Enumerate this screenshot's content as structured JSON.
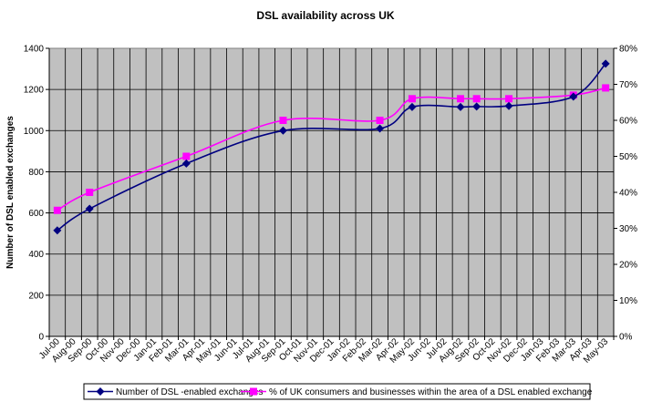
{
  "chart_data": {
    "type": "line",
    "title": "DSL availability across UK",
    "ylabel": "Number of DSL enabled exchanges",
    "y2label": "",
    "categories": [
      "Jul-00",
      "Aug-00",
      "Sep-00",
      "Oct-00",
      "Nov-00",
      "Dec-00",
      "Jan-01",
      "Feb-01",
      "Mar-01",
      "Apr-01",
      "May-01",
      "Jun-01",
      "Jul-01",
      "Aug-01",
      "Sep-01",
      "Oct-01",
      "Nov-01",
      "Dec-01",
      "Jan-02",
      "Feb-02",
      "Mar-02",
      "Apr-02",
      "May-02",
      "Jun-02",
      "Jul-02",
      "Aug-02",
      "Sep-02",
      "Oct-02",
      "Nov-02",
      "Dec-02",
      "Jan-03",
      "Feb-03",
      "Mar-03",
      "Apr-03",
      "May-03"
    ],
    "ylim": [
      0,
      1400
    ],
    "yticks": [
      "0",
      "200",
      "400",
      "600",
      "800",
      "1000",
      "1200",
      "1400"
    ],
    "y2lim": [
      0,
      80
    ],
    "y2ticks": [
      "0%",
      "10%",
      "20%",
      "30%",
      "40%",
      "50%",
      "60%",
      "70%",
      "80%"
    ],
    "grid": true,
    "legend_position": "bottom",
    "series": [
      {
        "name": "Number of DSL -enabled exchanges",
        "axis": "left",
        "color": "#000080",
        "marker": "diamond",
        "x": [
          0,
          2,
          8,
          14,
          20,
          22,
          25,
          26,
          28,
          32,
          34
        ],
        "values": [
          515,
          620,
          840,
          1000,
          1010,
          1115,
          1115,
          1117,
          1120,
          1165,
          1325
        ]
      },
      {
        "name": "% of UK consumers and businesses within the area of a DSL enabled exchange",
        "axis": "right",
        "color": "#FF00FF",
        "marker": "square",
        "x": [
          0,
          2,
          8,
          14,
          20,
          22,
          25,
          26,
          28,
          32,
          34
        ],
        "values": [
          35,
          40,
          50,
          60,
          60,
          66,
          66,
          66,
          66,
          67,
          69
        ]
      }
    ]
  }
}
